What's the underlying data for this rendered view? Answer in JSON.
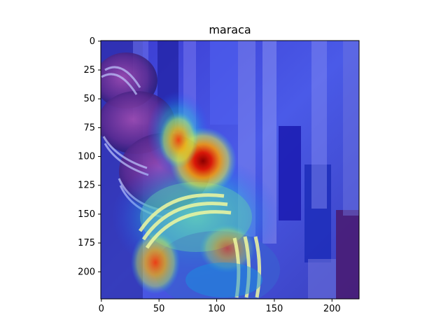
{
  "title": "maraca",
  "image": {
    "width": 224,
    "height": 224,
    "description": "Grad-CAM style heatmap (jet colormap) overlaid on a photo of maracas"
  },
  "axes": {
    "x_ticks": [
      "0",
      "50",
      "100",
      "150",
      "200"
    ],
    "y_ticks": [
      "0",
      "25",
      "50",
      "75",
      "100",
      "125",
      "150",
      "175",
      "200"
    ],
    "xlim": [
      0,
      224
    ],
    "ylim": [
      224,
      0
    ]
  },
  "colors": {
    "colormap": "jet",
    "frame": "#000000",
    "background": "#ffffff"
  }
}
